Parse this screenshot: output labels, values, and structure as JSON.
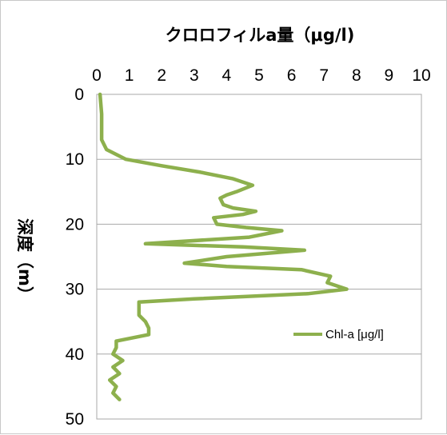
{
  "chart_data": {
    "type": "line",
    "title": "クロロフィルa量（μg/l)",
    "ylabel": "深度（m）",
    "xlabel": "",
    "xlim": [
      0,
      10
    ],
    "ylim": [
      0,
      50
    ],
    "y_axis_inverted": true,
    "x_axis_position": "top",
    "x_ticks": [
      "0",
      "1",
      "2",
      "3",
      "4",
      "5",
      "6",
      "7",
      "8",
      "9",
      "10"
    ],
    "y_ticks": [
      "0",
      "10",
      "20",
      "30",
      "40",
      "50"
    ],
    "grid": "horizontal",
    "legend_position": "right",
    "series": [
      {
        "name": "Chl-a [μg/l]",
        "color": "#8db04d",
        "points": [
          [
            0.1,
            0
          ],
          [
            0.15,
            3
          ],
          [
            0.15,
            7
          ],
          [
            0.3,
            8.5
          ],
          [
            0.9,
            10
          ],
          [
            2.0,
            11
          ],
          [
            3.2,
            12
          ],
          [
            4.2,
            13
          ],
          [
            4.8,
            14
          ],
          [
            4.3,
            15
          ],
          [
            4.0,
            15.5
          ],
          [
            3.8,
            16
          ],
          [
            3.9,
            17
          ],
          [
            4.2,
            17.5
          ],
          [
            4.9,
            18
          ],
          [
            4.5,
            18.5
          ],
          [
            3.6,
            19
          ],
          [
            3.7,
            20
          ],
          [
            4.6,
            20.5
          ],
          [
            5.7,
            21
          ],
          [
            4.7,
            22
          ],
          [
            1.5,
            23
          ],
          [
            4.5,
            23.5
          ],
          [
            6.4,
            24
          ],
          [
            4.0,
            25
          ],
          [
            2.7,
            26
          ],
          [
            4.0,
            26.5
          ],
          [
            6.3,
            27
          ],
          [
            7.2,
            28
          ],
          [
            7.1,
            29
          ],
          [
            7.7,
            30
          ],
          [
            6.5,
            30.7
          ],
          [
            3.0,
            31.5
          ],
          [
            1.3,
            32
          ],
          [
            1.3,
            34
          ],
          [
            1.5,
            35
          ],
          [
            1.6,
            36
          ],
          [
            1.6,
            37
          ],
          [
            0.6,
            38
          ],
          [
            0.6,
            39
          ],
          [
            0.5,
            40
          ],
          [
            0.8,
            41
          ],
          [
            0.5,
            42
          ],
          [
            0.7,
            43
          ],
          [
            0.4,
            44
          ],
          [
            0.6,
            45
          ],
          [
            0.5,
            46
          ],
          [
            0.7,
            47
          ]
        ]
      }
    ]
  }
}
